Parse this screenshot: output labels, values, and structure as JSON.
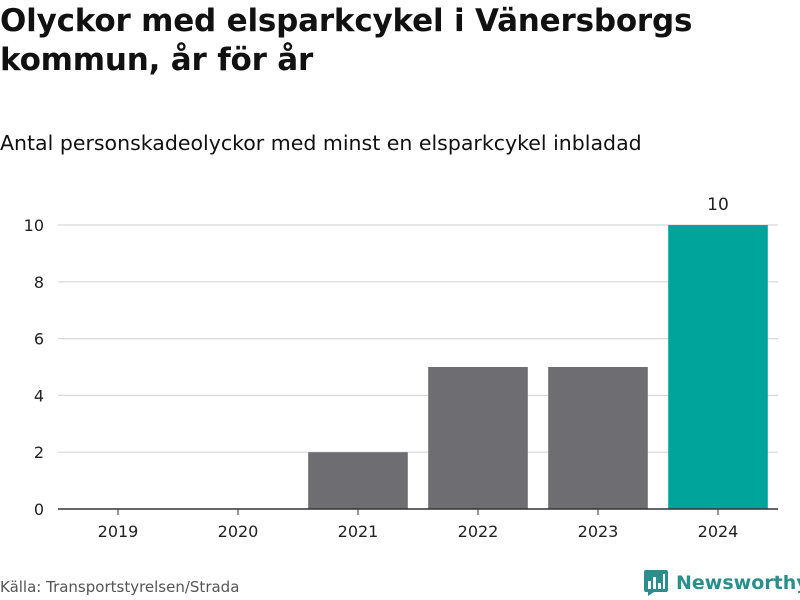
{
  "title": "Olyckor med elsparkcykel i Vänersborgs kommun, år för år",
  "subtitle": "Antal personskadeolyckor med minst en elsparkcykel inbladad",
  "source": "Källa: Transportstyrelsen/Strada",
  "brand": {
    "name": "Newsworthy",
    "icon": "bar-chart-logo-icon"
  },
  "colors": {
    "default_bar": "#6e6d72",
    "highlight_bar": "#00a49a",
    "grid": "#d9d9d9",
    "axis": "#333333",
    "brand": "#2a8f8c"
  },
  "chart_data": {
    "type": "bar",
    "categories": [
      "2019",
      "2020",
      "2021",
      "2022",
      "2023",
      "2024"
    ],
    "values": [
      0,
      0,
      2,
      5,
      5,
      10
    ],
    "highlight_index": 5,
    "data_labels": {
      "5": "10"
    },
    "ylim": [
      0,
      10
    ],
    "yticks": [
      0,
      2,
      4,
      6,
      8,
      10
    ],
    "grid": true,
    "legend": "none",
    "xlabel": "",
    "ylabel": ""
  }
}
